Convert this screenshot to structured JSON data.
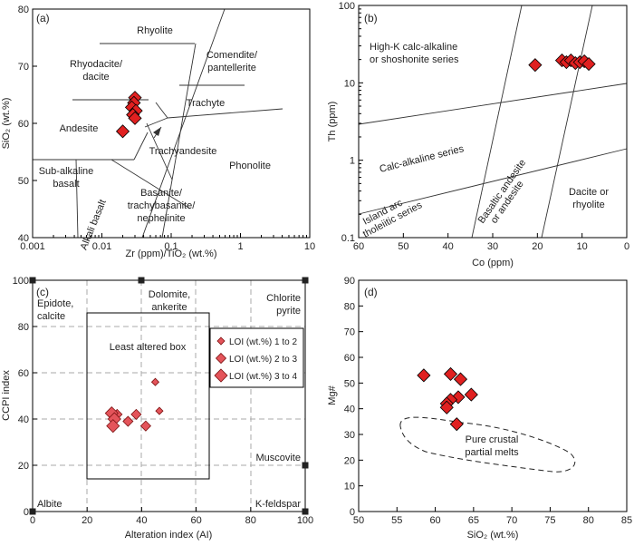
{
  "chart_data": [
    {
      "id": "a",
      "panel_label": "(a)",
      "type": "scatter",
      "xlabel": "Zr (ppm)/TiO₂ (wt.%)",
      "ylabel": "SiO₂ (wt.%)",
      "xscale": "log",
      "xlim": [
        0.001,
        10
      ],
      "ylim": [
        40,
        80
      ],
      "xticks": [
        "0.001",
        "0.01",
        "0.1",
        "1",
        "10"
      ],
      "yticks": [
        "40",
        "50",
        "60",
        "70",
        "80"
      ],
      "field_labels": [
        "Rhyolite",
        "Comendite/",
        "pantellerite",
        "Rhyodacite/",
        "dacite",
        "Trachyte",
        "Andesite",
        "Trachyandesite",
        "Phonolite",
        "Sub-alkaline",
        "basalt",
        "Alkali basalt",
        "Basanite/",
        "trachybasanite/",
        "nephelinite"
      ],
      "points": [
        {
          "x": 0.03,
          "y": 64.5
        },
        {
          "x": 0.029,
          "y": 63.6
        },
        {
          "x": 0.027,
          "y": 62.8
        },
        {
          "x": 0.031,
          "y": 62.2
        },
        {
          "x": 0.028,
          "y": 61.5
        },
        {
          "x": 0.03,
          "y": 60.9
        },
        {
          "x": 0.02,
          "y": 58.6
        }
      ]
    },
    {
      "id": "b",
      "panel_label": "(b)",
      "type": "scatter",
      "xlabel": "Co (ppm)",
      "ylabel": "Th (ppm)",
      "yscale": "log",
      "xlim": [
        60,
        0
      ],
      "ylim": [
        0.1,
        100
      ],
      "xticks": [
        "60",
        "50",
        "40",
        "30",
        "20",
        "10",
        "0"
      ],
      "yticks": [
        "0.1",
        "1",
        "10",
        "100"
      ],
      "field_labels": [
        "High-K calc-alkaline",
        "or shoshonite series",
        "Calc-alkaline series",
        "Island arc",
        "tholeiitic series",
        "Basaltic andesite",
        "or andesite",
        "Dacite or",
        "rhyolite"
      ],
      "points": [
        {
          "x": 20.5,
          "y": 17
        },
        {
          "x": 14.5,
          "y": 19.5
        },
        {
          "x": 13.5,
          "y": 18.5
        },
        {
          "x": 12.5,
          "y": 19.5
        },
        {
          "x": 11.5,
          "y": 18
        },
        {
          "x": 10.5,
          "y": 18.5
        },
        {
          "x": 9.5,
          "y": 19
        },
        {
          "x": 8.5,
          "y": 17.5
        }
      ]
    },
    {
      "id": "c",
      "panel_label": "(c)",
      "type": "scatter",
      "xlabel": "Alteration index (AI)",
      "ylabel": "CCPI index",
      "xlim": [
        0,
        100
      ],
      "ylim": [
        0,
        100
      ],
      "xticks": [
        "0",
        "20",
        "40",
        "60",
        "80",
        "100"
      ],
      "yticks": [
        "0",
        "20",
        "40",
        "60",
        "80",
        "100"
      ],
      "box_label": "Least altered box",
      "corner_labels": [
        "Epidote,",
        "calcite",
        "Dolomite,",
        "ankerite",
        "Chlorite",
        "pyrite",
        "Muscovite",
        "Albite",
        "K-feldspar"
      ],
      "legend": [
        "LOI (wt.%) 1 to 2",
        "LOI (wt.%) 2 to 3",
        "LOI (wt.%) 3 to 4"
      ],
      "points": [
        {
          "x": 45,
          "y": 56,
          "loi": "1-2"
        },
        {
          "x": 46.5,
          "y": 43.5,
          "loi": "1-2"
        },
        {
          "x": 31,
          "y": 42,
          "loi": "2-3"
        },
        {
          "x": 38,
          "y": 42,
          "loi": "2-3"
        },
        {
          "x": 35,
          "y": 39,
          "loi": "2-3"
        },
        {
          "x": 41.5,
          "y": 37,
          "loi": "2-3"
        },
        {
          "x": 29,
          "y": 42.5,
          "loi": "3-4"
        },
        {
          "x": 30,
          "y": 40,
          "loi": "3-4"
        },
        {
          "x": 29.5,
          "y": 37,
          "loi": "3-4"
        }
      ]
    },
    {
      "id": "d",
      "panel_label": "(d)",
      "type": "scatter",
      "xlabel": "SiO₂ (wt.%)",
      "ylabel": "Mg#",
      "xlim": [
        50,
        85
      ],
      "ylim": [
        0,
        90
      ],
      "xticks": [
        "50",
        "55",
        "60",
        "65",
        "70",
        "75",
        "80",
        "85"
      ],
      "yticks": [
        "0",
        "10",
        "20",
        "30",
        "40",
        "50",
        "60",
        "70",
        "80",
        "90"
      ],
      "field_label_1": "Pure crustal",
      "field_label_2": "partial melts",
      "points": [
        {
          "x": 58.5,
          "y": 53
        },
        {
          "x": 62,
          "y": 53.5
        },
        {
          "x": 63.3,
          "y": 51.5
        },
        {
          "x": 64.7,
          "y": 45.5
        },
        {
          "x": 63,
          "y": 44.5
        },
        {
          "x": 62,
          "y": 43.5
        },
        {
          "x": 61.5,
          "y": 42
        },
        {
          "x": 61.5,
          "y": 40.5
        },
        {
          "x": 62.8,
          "y": 34
        }
      ]
    }
  ]
}
